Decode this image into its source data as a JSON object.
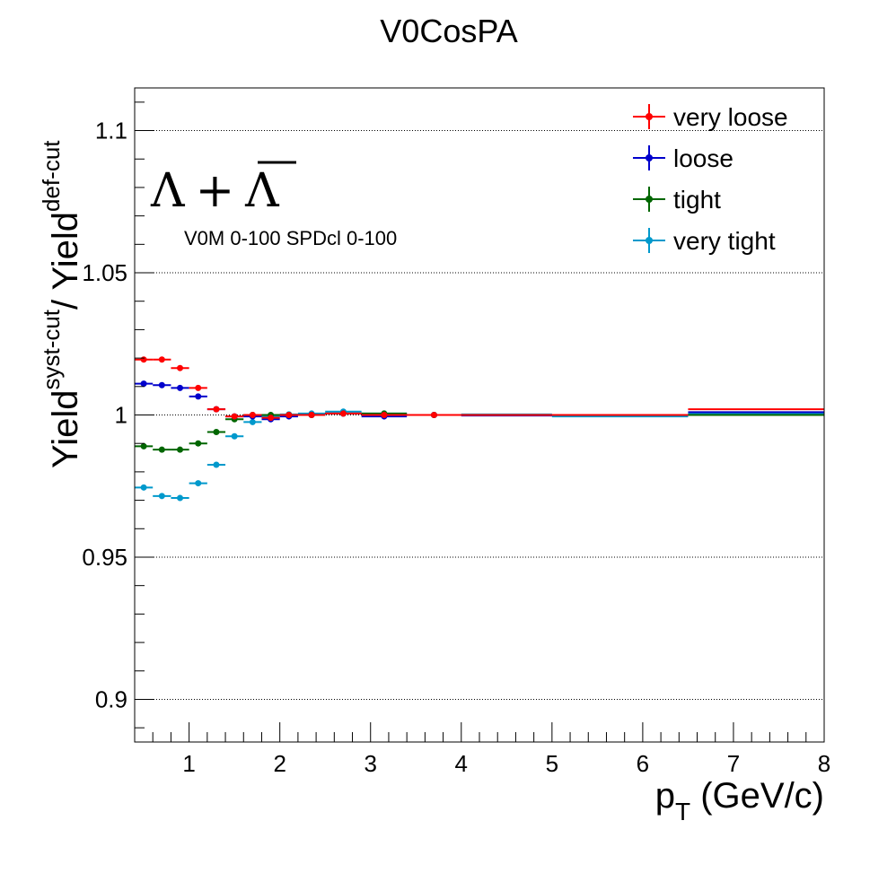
{
  "chart_data": {
    "type": "scatter",
    "title": "V0CosPA",
    "xlabel_main": "p",
    "xlabel_sub": "T",
    "xlabel_rest": " (GeV/c)",
    "ylabel_num": "Yield",
    "ylabel_num_sup": "syst-cut",
    "ylabel_sep": "/ Yield",
    "ylabel_den_sup": "def-cut",
    "annotation_particle": "Λ + Λ",
    "annotation_particle_a": "Λ",
    "annotation_particle_plus": "+",
    "annotation_particle_b": "Λ",
    "annotation_selection": "V0M 0-100 SPDcl 0-100",
    "xlim": [
      0.4,
      8.0
    ],
    "ylim": [
      0.885,
      1.115
    ],
    "x_ticks": [
      1,
      2,
      3,
      4,
      5,
      6,
      7,
      8
    ],
    "x_tick_labels": [
      "1",
      "2",
      "3",
      "4",
      "5",
      "6",
      "7",
      "8"
    ],
    "y_ticks": [
      0.9,
      0.95,
      1.0,
      1.05,
      1.1
    ],
    "y_tick_labels": [
      "0.9",
      "0.95",
      "1",
      "1.05",
      "1.1"
    ],
    "grid_y": true,
    "legend_position": "top-right",
    "bins": [
      [
        0.4,
        0.6
      ],
      [
        0.6,
        0.8
      ],
      [
        0.8,
        1.0
      ],
      [
        1.0,
        1.2
      ],
      [
        1.2,
        1.4
      ],
      [
        1.4,
        1.6
      ],
      [
        1.6,
        1.8
      ],
      [
        1.8,
        2.0
      ],
      [
        2.0,
        2.2
      ],
      [
        2.2,
        2.5
      ],
      [
        2.5,
        2.9
      ],
      [
        2.9,
        3.4
      ],
      [
        3.4,
        4.0
      ],
      [
        4.0,
        5.0
      ],
      [
        5.0,
        6.5
      ],
      [
        6.5,
        8.0
      ]
    ],
    "series": [
      {
        "name": "very loose",
        "color": "#ff0000",
        "values": [
          1.0195,
          1.0195,
          1.0165,
          1.0095,
          1.002,
          0.9995,
          1.0,
          0.999,
          1.0,
          1.0,
          1.0005,
          1.0,
          1.0,
          1.0,
          1.0,
          1.002
        ]
      },
      {
        "name": "loose",
        "color": "#0000cc",
        "values": [
          1.011,
          1.0105,
          1.0095,
          1.0065,
          1.002,
          0.9995,
          0.9995,
          0.9985,
          0.9995,
          1.0,
          1.0005,
          0.9995,
          1.0,
          0.9998,
          1.0,
          1.001
        ]
      },
      {
        "name": "tight",
        "color": "#006600",
        "values": [
          0.989,
          0.9878,
          0.9878,
          0.99,
          0.994,
          0.9985,
          1.0,
          1.0,
          1.0,
          1.0,
          1.0005,
          1.0005,
          1.0,
          1.0,
          1.0,
          1.0
        ]
      },
      {
        "name": "very tight",
        "color": "#0099cc",
        "values": [
          0.9745,
          0.9715,
          0.9708,
          0.976,
          0.9825,
          0.9925,
          0.9975,
          0.9995,
          1.0002,
          1.0005,
          1.0012,
          1.0005,
          1.0,
          1.0002,
          0.9995,
          1.0005
        ]
      }
    ]
  }
}
